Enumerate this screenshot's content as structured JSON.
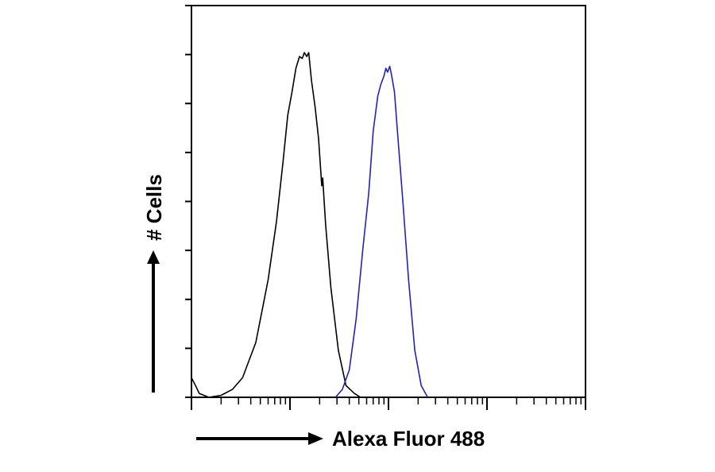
{
  "chart_data": {
    "type": "line",
    "title": "",
    "xlabel": "Alexa Fluor 488",
    "ylabel": "# Cells",
    "x_scale": "log",
    "xlim": [
      1,
      10000
    ],
    "ylim": [
      0,
      100
    ],
    "x_tick_decades": [
      1,
      10,
      100,
      1000,
      10000
    ],
    "y_ticks": [
      0,
      12.5,
      25,
      37.5,
      50,
      62.5,
      75,
      87.5,
      100
    ],
    "grid": false,
    "legend": "none",
    "series": [
      {
        "color": "#000000",
        "points": [
          [
            1.0,
            5
          ],
          [
            1.1,
            3
          ],
          [
            1.2,
            1
          ],
          [
            1.5,
            0
          ],
          [
            2.0,
            0.5
          ],
          [
            2.6,
            2
          ],
          [
            3.3,
            5
          ],
          [
            4.5,
            14
          ],
          [
            6,
            30
          ],
          [
            7.3,
            45
          ],
          [
            8.5,
            60
          ],
          [
            9.5,
            72
          ],
          [
            10.5,
            78
          ],
          [
            11.5,
            84
          ],
          [
            12.5,
            87
          ],
          [
            13.3,
            86.5
          ],
          [
            14.0,
            88
          ],
          [
            14.8,
            87
          ],
          [
            15.5,
            88
          ],
          [
            16.5,
            81
          ],
          [
            18,
            74
          ],
          [
            19.5,
            66
          ],
          [
            21,
            54
          ],
          [
            21.5,
            56
          ],
          [
            23,
            44
          ],
          [
            26,
            28
          ],
          [
            31,
            12
          ],
          [
            37,
            3
          ],
          [
            45,
            1
          ],
          [
            52,
            0
          ]
        ]
      },
      {
        "color": "#2222bb",
        "points": [
          [
            29,
            0
          ],
          [
            34,
            2
          ],
          [
            40,
            7
          ],
          [
            47,
            20
          ],
          [
            55,
            38
          ],
          [
            63,
            52
          ],
          [
            70,
            68
          ],
          [
            78,
            77
          ],
          [
            84,
            80
          ],
          [
            90,
            82
          ],
          [
            94,
            84
          ],
          [
            98,
            83
          ],
          [
            103,
            84.5
          ],
          [
            108,
            82
          ],
          [
            115,
            78
          ],
          [
            125,
            66
          ],
          [
            140,
            50
          ],
          [
            160,
            30
          ],
          [
            185,
            12
          ],
          [
            215,
            3
          ],
          [
            250,
            0
          ]
        ]
      }
    ]
  }
}
